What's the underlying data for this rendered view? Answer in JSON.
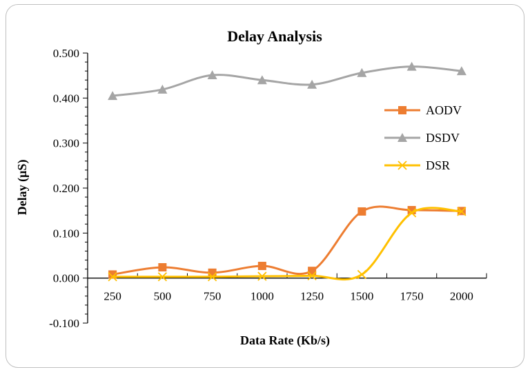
{
  "chart_data": {
    "type": "line",
    "title": "Delay Analysis",
    "xlabel": "Data Rate (Kb/s)",
    "ylabel": "Delay (µS)",
    "categories": [
      "250",
      "500",
      "750",
      "1000",
      "1250",
      "1500",
      "1750",
      "2000"
    ],
    "yticks": [
      "0.500",
      "0.400",
      "0.300",
      "0.200",
      "0.100",
      "0.000",
      "-0.100"
    ],
    "ylim": [
      -0.1,
      0.5
    ],
    "smooth": true,
    "grid": false,
    "legend_position": "right",
    "series": [
      {
        "name": "AODV",
        "color": "#ed7d31",
        "marker": "square",
        "values": [
          0.008,
          0.024,
          0.012,
          0.027,
          0.016,
          0.148,
          0.151,
          0.149
        ]
      },
      {
        "name": "DSDV",
        "color": "#a5a5a5",
        "marker": "triangle",
        "values": [
          0.405,
          0.419,
          0.451,
          0.44,
          0.43,
          0.456,
          0.47,
          0.46
        ]
      },
      {
        "name": "DSR",
        "color": "#ffc000",
        "marker": "x",
        "values": [
          0.003,
          0.003,
          0.003,
          0.004,
          0.005,
          0.008,
          0.145,
          0.148
        ]
      }
    ]
  }
}
